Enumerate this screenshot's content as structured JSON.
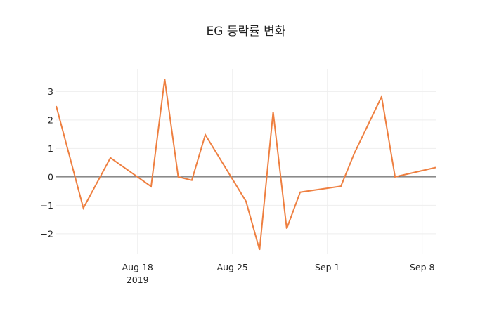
{
  "chart_data": {
    "type": "line",
    "title": "EG 등락률 변화",
    "xlabel": "",
    "ylabel": "",
    "x": [
      "2019-08-12",
      "2019-08-14",
      "2019-08-16",
      "2019-08-19",
      "2019-08-20",
      "2019-08-21",
      "2019-08-22",
      "2019-08-23",
      "2019-08-26",
      "2019-08-27",
      "2019-08-28",
      "2019-08-29",
      "2019-08-30",
      "2019-09-02",
      "2019-09-03",
      "2019-09-05",
      "2019-09-06",
      "2019-09-09"
    ],
    "series": [
      {
        "name": "EG",
        "color": "#ee7f40",
        "values": [
          2.49,
          -1.1,
          0.67,
          -0.34,
          3.44,
          0.0,
          -0.12,
          1.48,
          -0.86,
          -2.57,
          2.28,
          -1.82,
          -0.54,
          -0.33,
          0.84,
          2.82,
          0.0,
          0.33
        ]
      }
    ],
    "x_ticks": [
      {
        "date": "2019-08-18",
        "label": "Aug 18",
        "sublabel": "2019"
      },
      {
        "date": "2019-08-25",
        "label": "Aug 25",
        "sublabel": ""
      },
      {
        "date": "2019-09-01",
        "label": "Sep 1",
        "sublabel": ""
      },
      {
        "date": "2019-09-08",
        "label": "Sep 8",
        "sublabel": ""
      }
    ],
    "y_ticks": [
      3,
      2,
      1,
      0,
      -1,
      -2
    ],
    "y_tick_labels": [
      "3",
      "2",
      "1",
      "0",
      "−1",
      "−2"
    ],
    "xlim": [
      "2019-08-12",
      "2019-09-09"
    ],
    "ylim": [
      -2.72,
      3.8
    ],
    "grid": true,
    "zeroline": true,
    "legend": "none"
  }
}
